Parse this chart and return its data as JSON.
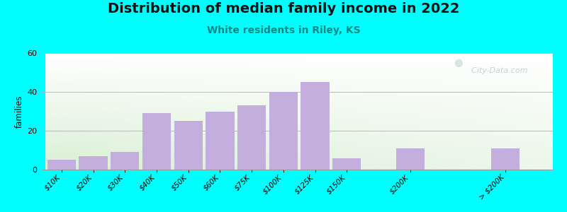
{
  "title": "Distribution of median family income in 2022",
  "subtitle": "White residents in Riley, KS",
  "ylabel": "families",
  "background_color": "#00FFFF",
  "bar_color": "#C4AEDD",
  "plot_bg_color_topleft": "#F0F8F0",
  "plot_bg_color_topright": "#FFFFFF",
  "plot_bg_color_bottomleft": "#D8EDD0",
  "plot_bg_color_bottomright": "#F5F5F5",
  "categories": [
    "$10K",
    "$20K",
    "$30K",
    "$40K",
    "$50K",
    "$60K",
    "$75K",
    "$100K",
    "$125K",
    "$150K",
    "$200K",
    "> $200K"
  ],
  "values": [
    5,
    7,
    9,
    29,
    25,
    30,
    33,
    40,
    45,
    6,
    11,
    11
  ],
  "bar_positions": [
    0,
    1,
    2,
    3,
    4,
    5,
    6,
    7,
    8,
    9,
    11,
    14
  ],
  "ylim": [
    0,
    60
  ],
  "yticks": [
    0,
    20,
    40,
    60
  ],
  "grid_color": "#BBBBBB",
  "watermark": "  City-Data.com",
  "title_fontsize": 14,
  "subtitle_fontsize": 10,
  "subtitle_color": "#008888",
  "bar_width": 0.9
}
